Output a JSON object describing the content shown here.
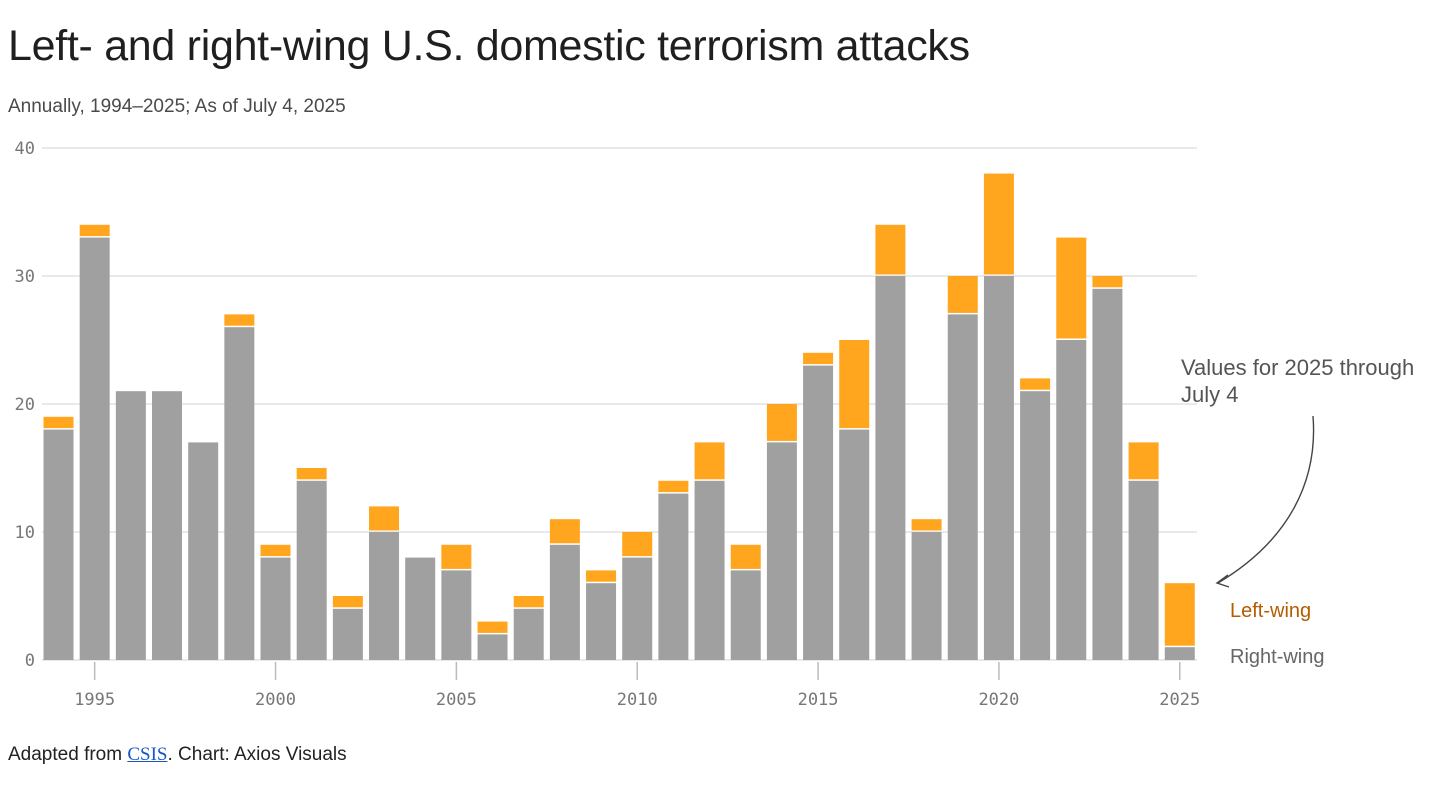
{
  "title": "Left- and right-wing U.S. domestic terrorism attacks",
  "subtitle": "Annually, 1994–2025; As of July 4, 2025",
  "source": {
    "prefix": "Adapted from ",
    "link_text": "CSIS",
    "suffix": ". Chart: Axios Visuals"
  },
  "colors": {
    "left_wing": "#FFA51E",
    "right_wing": "#A0A0A0",
    "left_wing_label": "#B35C00",
    "right_wing_label": "#666666",
    "gridline": "#E2E2E2"
  },
  "chart_data": {
    "type": "bar",
    "stacked": true,
    "categories": [
      1994,
      1995,
      1996,
      1997,
      1998,
      1999,
      2000,
      2001,
      2002,
      2003,
      2004,
      2005,
      2006,
      2007,
      2008,
      2009,
      2010,
      2011,
      2012,
      2013,
      2014,
      2015,
      2016,
      2017,
      2018,
      2019,
      2020,
      2021,
      2022,
      2023,
      2024,
      2025
    ],
    "series": [
      {
        "name": "Right-wing",
        "values": [
          18,
          33,
          21,
          21,
          17,
          26,
          8,
          14,
          4,
          10,
          8,
          7,
          2,
          4,
          9,
          6,
          8,
          13,
          14,
          7,
          17,
          23,
          18,
          30,
          10,
          27,
          30,
          21,
          25,
          29,
          14,
          1
        ]
      },
      {
        "name": "Left-wing",
        "values": [
          1,
          1,
          0,
          0,
          0,
          1,
          1,
          1,
          1,
          2,
          0,
          2,
          1,
          1,
          2,
          1,
          2,
          1,
          3,
          2,
          3,
          1,
          7,
          4,
          1,
          3,
          8,
          1,
          8,
          1,
          3,
          5
        ]
      }
    ],
    "ylim": [
      0,
      40
    ],
    "yticks": [
      "0",
      "10",
      "20",
      "30",
      "40"
    ],
    "xticks": [
      "1995",
      "2000",
      "2005",
      "2010",
      "2015",
      "2020",
      "2025"
    ],
    "annotation": {
      "lines": [
        "Values for 2025 through",
        "July 4"
      ]
    },
    "legend": {
      "left_wing": "Left-wing",
      "right_wing": "Right-wing"
    }
  }
}
